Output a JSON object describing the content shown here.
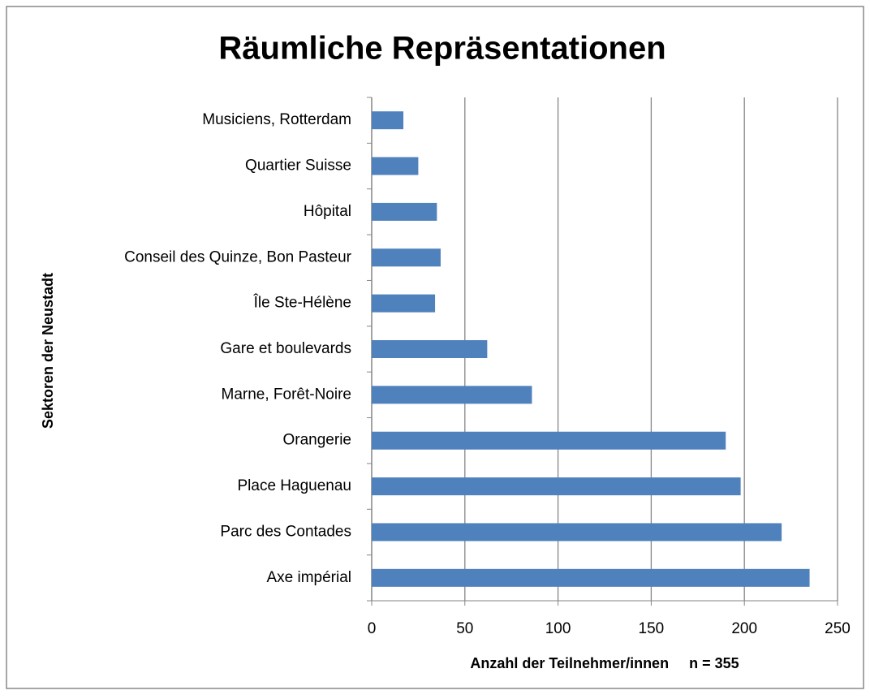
{
  "chart_data": {
    "type": "bar",
    "orientation": "horizontal",
    "title": "Räumliche Repräsentationen",
    "x_label": "Anzahl der Teilnehmer/innen     n = 355",
    "y_label": "Sektoren der Neustadt",
    "categories": [
      "Axe impérial",
      "Parc des Contades",
      "Place Haguenau",
      "Orangerie",
      "Marne, Forêt-Noire",
      "Gare et boulevards",
      "Île Ste-Hélène",
      "Conseil des Quinze, Bon Pasteur",
      "Hôpital",
      "Quartier Suisse",
      "Musiciens, Rotterdam"
    ],
    "values": [
      235,
      220,
      198,
      190,
      86,
      62,
      34,
      37,
      35,
      25,
      17
    ],
    "color": "#4f81bd",
    "xlim": [
      0,
      250
    ],
    "xticks": [
      0,
      50,
      100,
      150,
      200,
      250
    ],
    "grid": true
  }
}
